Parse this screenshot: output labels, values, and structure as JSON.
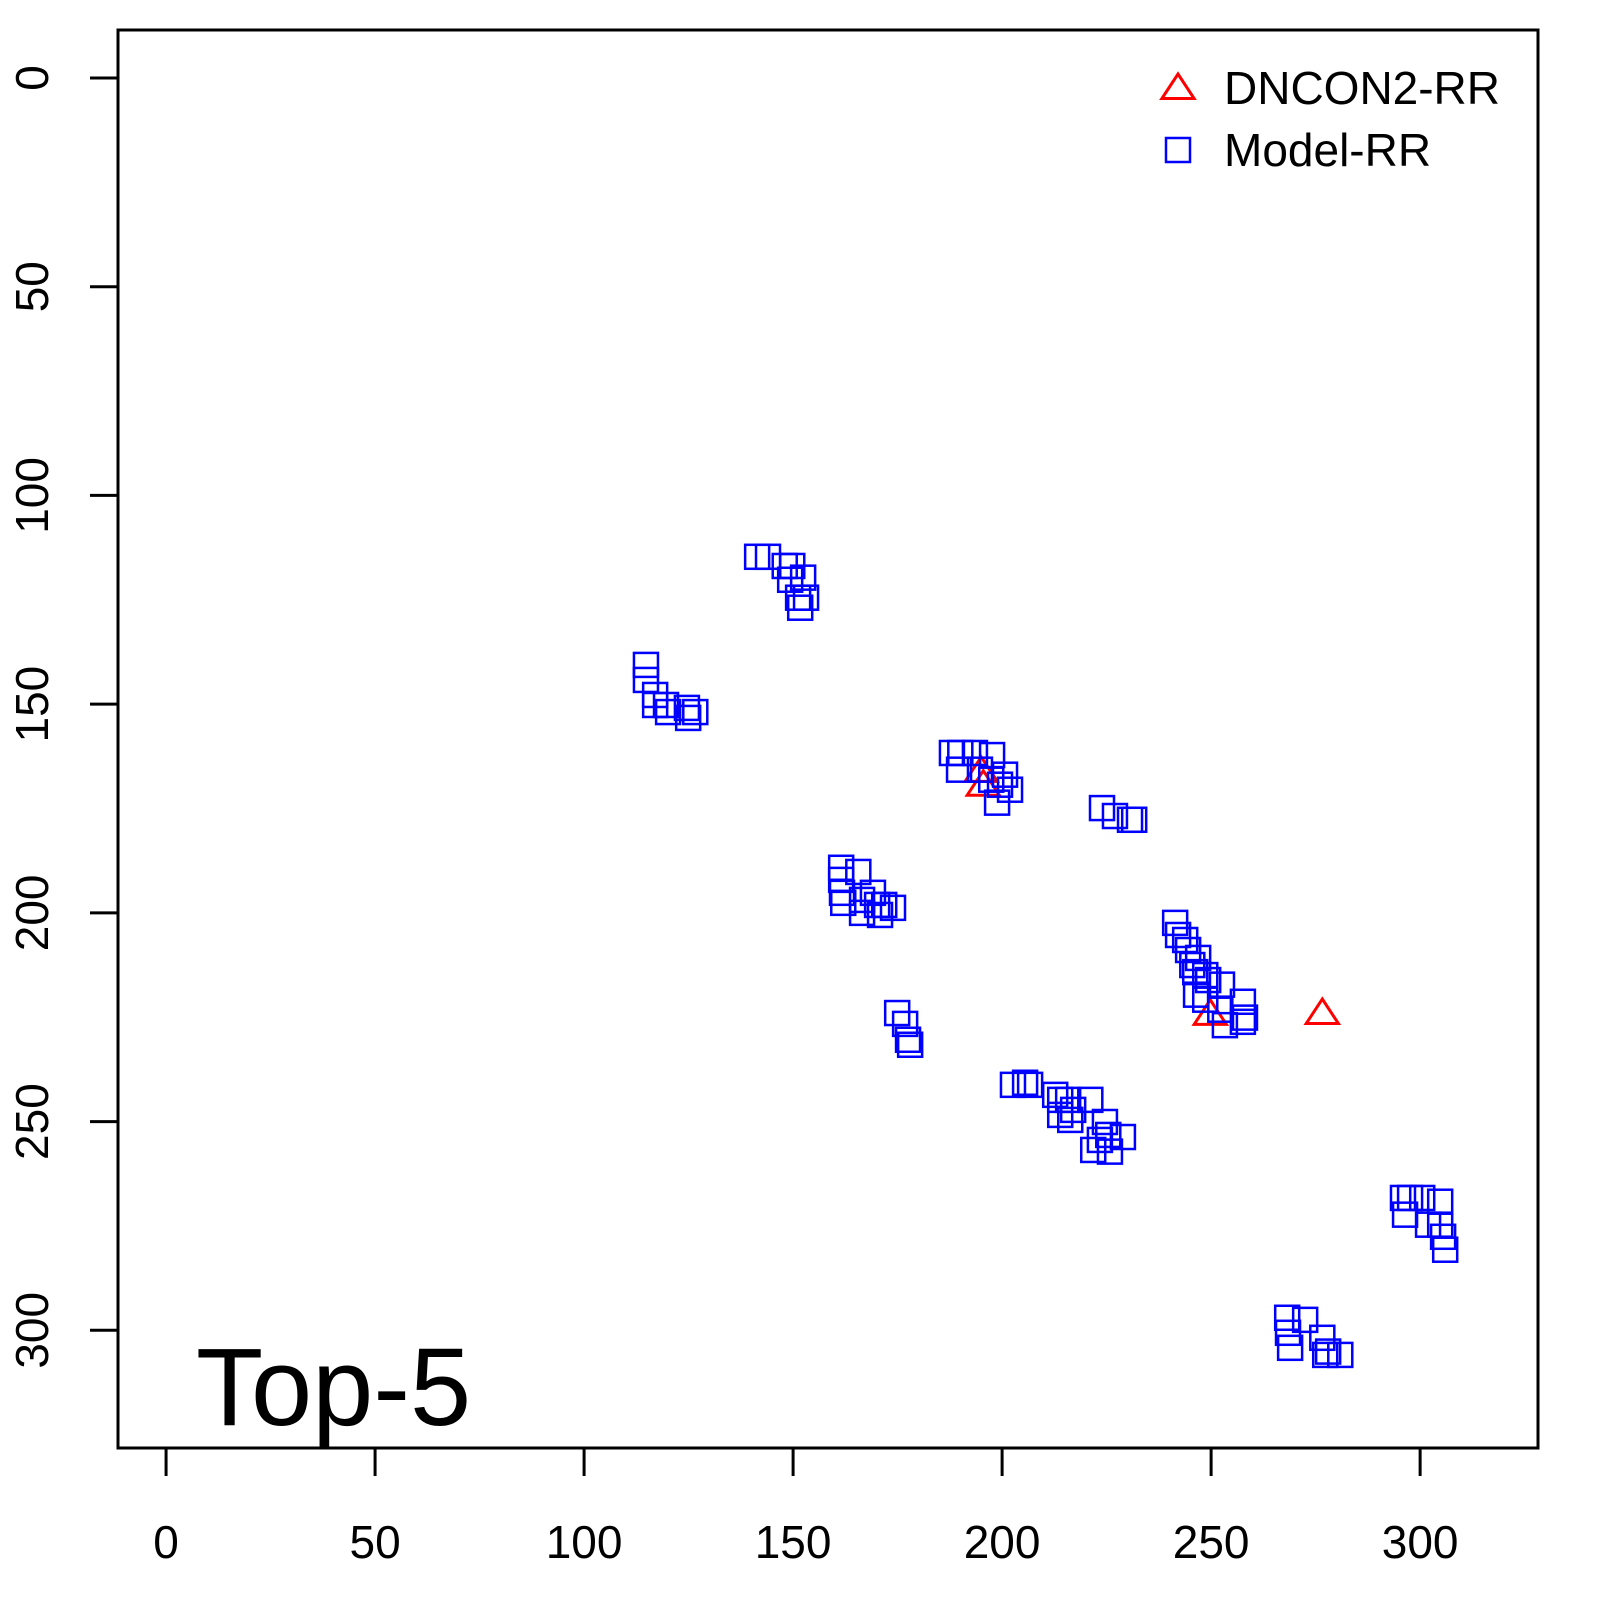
{
  "chart_data": {
    "type": "scatter",
    "annotation": "Top-5",
    "xlim": [
      -11.5,
      328.2
    ],
    "xticks": [
      0,
      50,
      100,
      150,
      200,
      250,
      300
    ],
    "ylim": [
      328.2,
      -11.5
    ],
    "yticks": [
      0,
      50,
      100,
      150,
      200,
      250,
      300
    ],
    "legend": "topright",
    "series": [
      {
        "name": "DNCON2-RR",
        "color": "#ff0000",
        "marker": "triangle",
        "x": [
          195,
          195.5,
          249.8,
          276.6
        ],
        "y": [
          166,
          169.3,
          224.2,
          224
        ]
      },
      {
        "name": "Model-RR",
        "color": "#0000ff",
        "marker": "square",
        "x": [
          141.4,
          144,
          148,
          149.8,
          149.3,
          152.4,
          151.2,
          153.1,
          151.7,
          114.8,
          114.8,
          117,
          117,
          119.6,
          120.1,
          124.6,
          124.9,
          126.6,
          188,
          190,
          193.5,
          197.6,
          189.7,
          194.7,
          197.4,
          200.7,
          198.8,
          201.9,
          199.5,
          223.9,
          227,
          230.6,
          231.6,
          161.5,
          161.5,
          161.7,
          162,
          165.6,
          166.5,
          169.1,
          170.1,
          170.8,
          171.8,
          173.9,
          166.5,
          174.9,
          176.8,
          177.5,
          178,
          241.4,
          242.1,
          243.8,
          244.5,
          245.5,
          246.2,
          246.9,
          248.6,
          249.3,
          246.4,
          248.6,
          252.6,
          252.2,
          253.3,
          257.6,
          258.1,
          257.6,
          202.6,
          205.5,
          206.7,
          212.7,
          213.9,
          215.8,
          217,
          213.9,
          216.3,
          221.1,
          224.6,
          225.4,
          221.8,
          225.8,
          223.4,
          228.9,
          295.9,
          297.6,
          300.5,
          304.8,
          296.4,
          301.9,
          304.8,
          305.5,
          306,
          268.2,
          268.4,
          268.9,
          272.5,
          276.6,
          278,
          280.9,
          277.3
        ],
        "y": [
          114.7,
          114.7,
          116.9,
          116.9,
          120.2,
          119.7,
          124.5,
          124.5,
          126.9,
          140.6,
          144.2,
          147.8,
          150.2,
          150.2,
          151.9,
          150.9,
          153.3,
          151.9,
          161.7,
          161.7,
          161.7,
          162.2,
          165.7,
          165.7,
          168.1,
          166.9,
          173.6,
          170.5,
          169.3,
          174.9,
          176.8,
          177.7,
          177.7,
          189.2,
          192.1,
          195.2,
          197.6,
          190.2,
          196.9,
          195.2,
          198.1,
          200.5,
          198.1,
          198.8,
          200,
          224,
          226.6,
          230.4,
          231.6,
          202.4,
          205.3,
          206.5,
          208.9,
          212.5,
          214.2,
          210.8,
          214.9,
          216.1,
          219.6,
          220.8,
          217.2,
          223.2,
          226.9,
          221.3,
          225.1,
          226.1,
          241.2,
          240.7,
          241.2,
          243.6,
          244.8,
          244.8,
          247.2,
          248.4,
          249.6,
          244.8,
          250.1,
          253.2,
          256.8,
          257.2,
          254.4,
          253.7,
          268.3,
          268.3,
          268.3,
          269.2,
          272.3,
          274.7,
          274.7,
          277.6,
          280.7,
          297,
          300.6,
          304.2,
          297.5,
          301.8,
          305.1,
          305.9,
          305.9
        ]
      }
    ]
  }
}
